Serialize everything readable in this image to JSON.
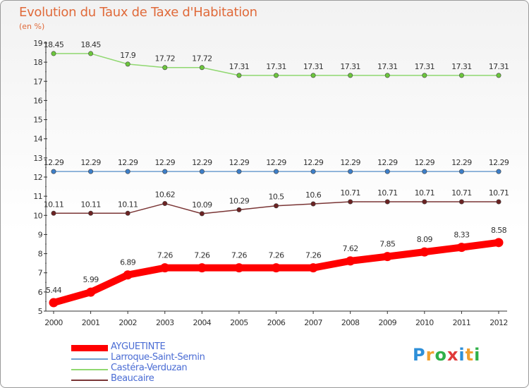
{
  "chart_data": {
    "type": "line",
    "title": "Evolution du Taux de Taxe d'Habitation",
    "subtitle": "(en %)",
    "x": [
      "2000",
      "2001",
      "2002",
      "2003",
      "2004",
      "2005",
      "2006",
      "2007",
      "2008",
      "2009",
      "2010",
      "2011",
      "2012"
    ],
    "ylim": [
      5,
      19
    ],
    "yticks": [
      5,
      6,
      7,
      8,
      9,
      10,
      11,
      12,
      13,
      14,
      15,
      16,
      17,
      18,
      19
    ],
    "grid": false,
    "legend_position": "bottom-left",
    "series": [
      {
        "name": "AYGUETINTE",
        "color": "#ff0000",
        "marker_color": "#ff0000",
        "values": [
          5.44,
          5.99,
          6.89,
          7.26,
          7.26,
          7.26,
          7.26,
          7.26,
          7.62,
          7.85,
          8.09,
          8.33,
          8.58
        ],
        "labels": [
          "5.44",
          "5.99",
          "6.89",
          "7.26",
          "7.26",
          "7.26",
          "7.26",
          "7.26",
          "7.62",
          "7.85",
          "8.09",
          "8.33",
          "8.58"
        ]
      },
      {
        "name": "Larroque-Saint-Sernin",
        "color": "#6f9fd0",
        "marker_color": "#3d7fc9",
        "values": [
          12.29,
          12.29,
          12.29,
          12.29,
          12.29,
          12.29,
          12.29,
          12.29,
          12.29,
          12.29,
          12.29,
          12.29,
          12.29
        ],
        "labels": [
          "12.29",
          "12.29",
          "12.29",
          "12.29",
          "12.29",
          "12.29",
          "12.29",
          "12.29",
          "12.29",
          "12.29",
          "12.29",
          "12.29",
          "12.29"
        ]
      },
      {
        "name": "Castéra-Verduzan",
        "color": "#90d870",
        "marker_color": "#6cc63c",
        "values": [
          18.45,
          18.45,
          17.9,
          17.72,
          17.72,
          17.31,
          17.31,
          17.31,
          17.31,
          17.31,
          17.31,
          17.31,
          17.31
        ],
        "labels": [
          "18.45",
          "18.45",
          "17.9",
          "17.72",
          "17.72",
          "17.31",
          "17.31",
          "17.31",
          "17.31",
          "17.31",
          "17.31",
          "17.31",
          "17.31"
        ]
      },
      {
        "name": "Beaucaire",
        "color": "#7a3535",
        "marker_color": "#6b2222",
        "values": [
          10.11,
          10.11,
          10.11,
          10.62,
          10.09,
          10.29,
          10.5,
          10.6,
          10.71,
          10.71,
          10.71,
          10.71,
          10.71
        ],
        "labels": [
          "10.11",
          "10.11",
          "10.11",
          "10.62",
          "10.09",
          "10.29",
          "10.5",
          "10.6",
          "10.71",
          "10.71",
          "10.71",
          "10.71",
          "10.71"
        ]
      }
    ]
  },
  "logo": {
    "text": "Proxiti",
    "letters": [
      "P",
      "r",
      "o",
      "x",
      "i",
      "t",
      "i"
    ]
  }
}
